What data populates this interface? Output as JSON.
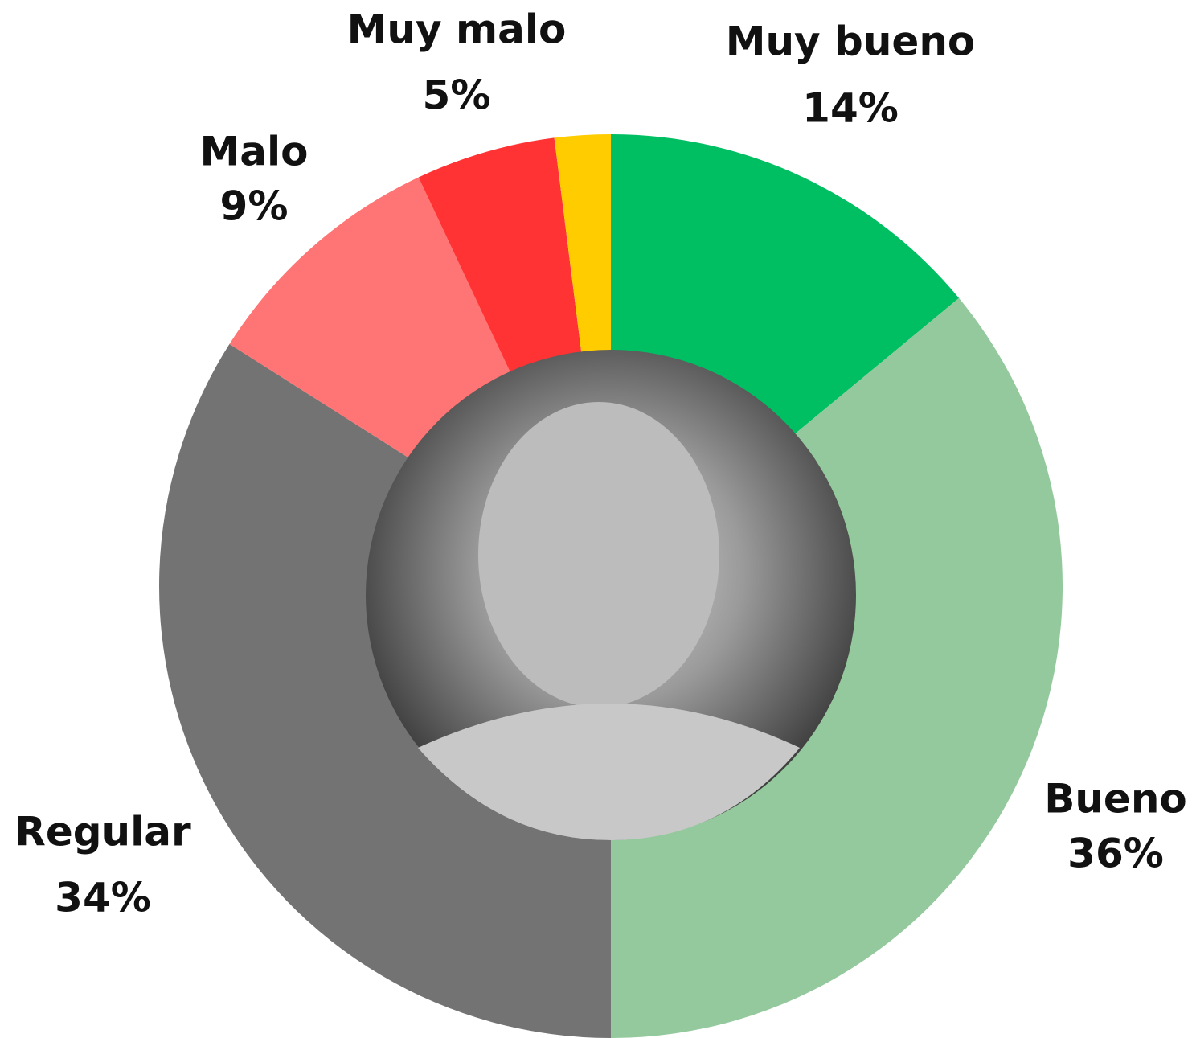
{
  "chart_data": {
    "type": "donut",
    "categories": [
      "Muy bueno",
      "Bueno",
      "Regular",
      "Malo",
      "Muy malo",
      null
    ],
    "values": [
      14,
      36,
      34,
      9,
      5,
      2
    ],
    "value_labels": [
      "14%",
      "36%",
      "34%",
      "9%",
      "5%",
      null
    ],
    "colors": [
      "#00bf63",
      "#93c99c",
      "#737373",
      "#ff7474",
      "#ff3333",
      "#ffcc00"
    ]
  }
}
